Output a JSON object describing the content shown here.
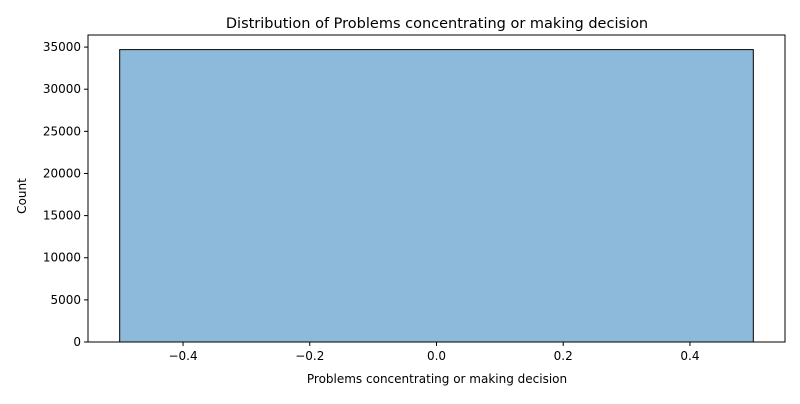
{
  "chart_data": {
    "type": "bar",
    "title": "Distribution of Problems concentrating or making decision",
    "xlabel": "Problems concentrating or making decision",
    "ylabel": "Count",
    "bins": [
      {
        "x_start": -0.5,
        "x_end": 0.5,
        "count": 34700
      }
    ],
    "xlim": [
      -0.55,
      0.55
    ],
    "ylim": [
      0,
      36435
    ],
    "xticks": [
      -0.4,
      -0.2,
      0.0,
      0.2,
      0.4
    ],
    "xtick_labels": [
      "−0.4",
      "−0.2",
      "0.0",
      "0.2",
      "0.4"
    ],
    "yticks": [
      0,
      5000,
      10000,
      15000,
      20000,
      25000,
      30000,
      35000
    ],
    "ytick_labels": [
      "0",
      "5000",
      "10000",
      "15000",
      "20000",
      "25000",
      "30000",
      "35000"
    ],
    "grid": false,
    "legend": "none",
    "bar_color": "#8db9da",
    "bar_edge_color": "#000000"
  }
}
